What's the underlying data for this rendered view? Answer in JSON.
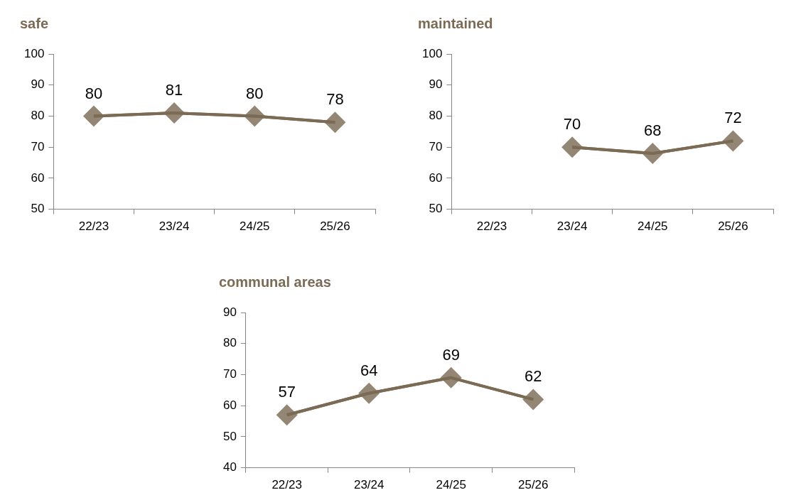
{
  "chart_data": [
    {
      "type": "line",
      "title": "safe",
      "categories": [
        "22/23",
        "23/24",
        "24/25",
        "25/26"
      ],
      "values": [
        80,
        81,
        80,
        78
      ],
      "color": "#7b6b55",
      "ylim": [
        50,
        100
      ],
      "yticks": [
        50,
        60,
        70,
        80,
        90,
        100
      ],
      "marker": "diamond",
      "data_labels": true
    },
    {
      "type": "line",
      "title": "maintained",
      "categories": [
        "22/23",
        "23/24",
        "24/25",
        "25/26"
      ],
      "values": [
        null,
        70,
        68,
        72
      ],
      "color": "#7b6b55",
      "ylim": [
        50,
        100
      ],
      "yticks": [
        50,
        60,
        70,
        80,
        90,
        100
      ],
      "marker": "diamond",
      "data_labels": true
    },
    {
      "type": "line",
      "title": "communal areas",
      "categories": [
        "22/23",
        "23/24",
        "24/25",
        "25/26"
      ],
      "values": [
        57,
        64,
        69,
        62
      ],
      "color": "#7b6b55",
      "ylim": [
        40,
        90
      ],
      "yticks": [
        40,
        50,
        60,
        70,
        80,
        90
      ],
      "marker": "diamond",
      "data_labels": true
    }
  ]
}
